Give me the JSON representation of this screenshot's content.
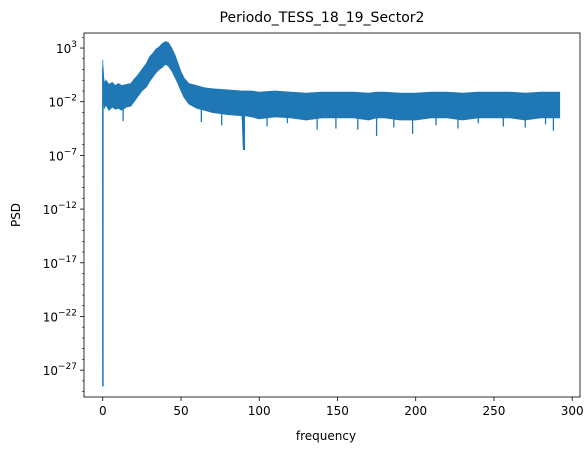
{
  "chart_data": {
    "type": "line",
    "title": "Periodo_TESS_18_19_Sector2",
    "xlabel": "frequency",
    "ylabel": "PSD",
    "xlim": [
      -12,
      305
    ],
    "ylim_log10": [
      -29.5,
      4.4
    ],
    "yscale": "log",
    "grid": false,
    "x_ticks": [
      0,
      50,
      100,
      150,
      200,
      250,
      300
    ],
    "x_tick_labels": [
      "0",
      "50",
      "100",
      "150",
      "200",
      "250",
      "300"
    ],
    "y_ticks_log10": [
      3,
      -2,
      -7,
      -12,
      -17,
      -22,
      -27
    ],
    "y_tick_labels": [
      {
        "base": "10",
        "exp": "3"
      },
      {
        "base": "10",
        "exp": "−2"
      },
      {
        "base": "10",
        "exp": "−7"
      },
      {
        "base": "10",
        "exp": "−12"
      },
      {
        "base": "10",
        "exp": "−17"
      },
      {
        "base": "10",
        "exp": "−22"
      },
      {
        "base": "10",
        "exp": "−27"
      }
    ],
    "line_color": "#1f77b4",
    "series": [
      {
        "x": [
          0,
          0.05,
          0.1,
          0.4,
          1,
          2,
          4,
          6,
          8,
          10,
          12,
          15,
          18,
          20,
          22,
          25,
          28,
          30,
          32,
          34,
          36,
          38,
          40,
          42,
          44,
          46,
          48,
          50,
          52,
          55,
          60,
          65,
          70,
          80,
          89,
          90,
          90.5,
          91,
          95,
          100,
          110,
          120,
          130,
          140,
          150,
          160,
          170,
          175,
          180,
          190,
          200,
          210,
          220,
          230,
          240,
          250,
          260,
          270,
          280,
          285,
          288,
          290,
          292
        ],
        "y_log10": [
          1.2,
          -28.5,
          0.8,
          -0.5,
          -1.5,
          -0.8,
          -1.3,
          -1.0,
          -1.2,
          -1.1,
          -1.3,
          -1.0,
          -0.9,
          -0.6,
          -0.3,
          0.2,
          0.7,
          1.3,
          1.6,
          2.0,
          2.3,
          2.5,
          2.8,
          2.6,
          2.2,
          1.6,
          0.9,
          0.2,
          -0.4,
          -1.0,
          -1.3,
          -1.5,
          -1.6,
          -1.7,
          -1.8,
          -6.5,
          -1.9,
          -1.8,
          -1.9,
          -2.0,
          -1.9,
          -2.0,
          -2.1,
          -2.0,
          -2.0,
          -2.0,
          -2.1,
          -2.0,
          -2.0,
          -2.1,
          -2.1,
          -2.0,
          -2.0,
          -2.1,
          -2.0,
          -2.0,
          -2.0,
          -2.1,
          -2.0,
          -2.0,
          -2.0,
          -2.0,
          -2.0
        ],
        "band_upper_log10": [
          1.9,
          -1.0,
          1.5,
          0.6,
          -0.3,
          0.0,
          -0.4,
          -0.2,
          -0.5,
          -0.3,
          -0.5,
          -0.4,
          -0.3,
          0.1,
          0.4,
          1.0,
          1.6,
          2.2,
          2.5,
          2.9,
          3.1,
          3.4,
          3.6,
          3.5,
          3.0,
          2.4,
          1.6,
          0.8,
          0.2,
          -0.3,
          -0.5,
          -0.7,
          -0.8,
          -0.9,
          -1.0,
          -1.0,
          -1.0,
          -1.0,
          -1.0,
          -1.1,
          -1.0,
          -1.1,
          -1.2,
          -1.1,
          -1.1,
          -1.1,
          -1.2,
          -1.1,
          -1.1,
          -1.2,
          -1.2,
          -1.1,
          -1.1,
          -1.2,
          -1.1,
          -1.1,
          -1.1,
          -1.2,
          -1.1,
          -1.1,
          -1.1,
          -1.1,
          -1.1
        ],
        "band_lower_log10": [
          0.5,
          -28.5,
          -0.2,
          -1.5,
          -2.6,
          -2.3,
          -2.8,
          -2.5,
          -2.7,
          -2.6,
          -2.8,
          -2.5,
          -2.4,
          -2.0,
          -1.6,
          -1.0,
          -0.6,
          -0.1,
          0.3,
          0.7,
          1.0,
          1.2,
          1.5,
          1.3,
          0.9,
          0.3,
          -0.3,
          -1.0,
          -1.6,
          -2.2,
          -2.6,
          -2.8,
          -3.0,
          -3.2,
          -3.3,
          -6.5,
          -3.4,
          -3.3,
          -3.4,
          -3.6,
          -3.4,
          -3.5,
          -3.7,
          -3.5,
          -3.5,
          -3.5,
          -3.7,
          -3.5,
          -3.5,
          -3.7,
          -3.7,
          -3.5,
          -3.5,
          -3.7,
          -3.5,
          -3.5,
          -3.5,
          -3.7,
          -3.5,
          -3.5,
          -3.5,
          -3.5,
          -3.5
        ]
      }
    ],
    "spikes": [
      {
        "x": 13,
        "y_log10": -3.8
      },
      {
        "x": 63,
        "y_log10": -3.9
      },
      {
        "x": 76,
        "y_log10": -4.2
      },
      {
        "x": 90.5,
        "y_log10": -6.5
      },
      {
        "x": 105,
        "y_log10": -4.3
      },
      {
        "x": 118,
        "y_log10": -4.0
      },
      {
        "x": 137,
        "y_log10": -4.6
      },
      {
        "x": 149,
        "y_log10": -4.5
      },
      {
        "x": 163,
        "y_log10": -4.6
      },
      {
        "x": 175,
        "y_log10": -5.2
      },
      {
        "x": 186,
        "y_log10": -4.4
      },
      {
        "x": 198,
        "y_log10": -5.0
      },
      {
        "x": 213,
        "y_log10": -4.2
      },
      {
        "x": 227,
        "y_log10": -4.5
      },
      {
        "x": 240,
        "y_log10": -4.0
      },
      {
        "x": 256,
        "y_log10": -4.3
      },
      {
        "x": 270,
        "y_log10": -4.4
      },
      {
        "x": 283,
        "y_log10": -4.1
      },
      {
        "x": 288,
        "y_log10": -4.7
      }
    ]
  }
}
